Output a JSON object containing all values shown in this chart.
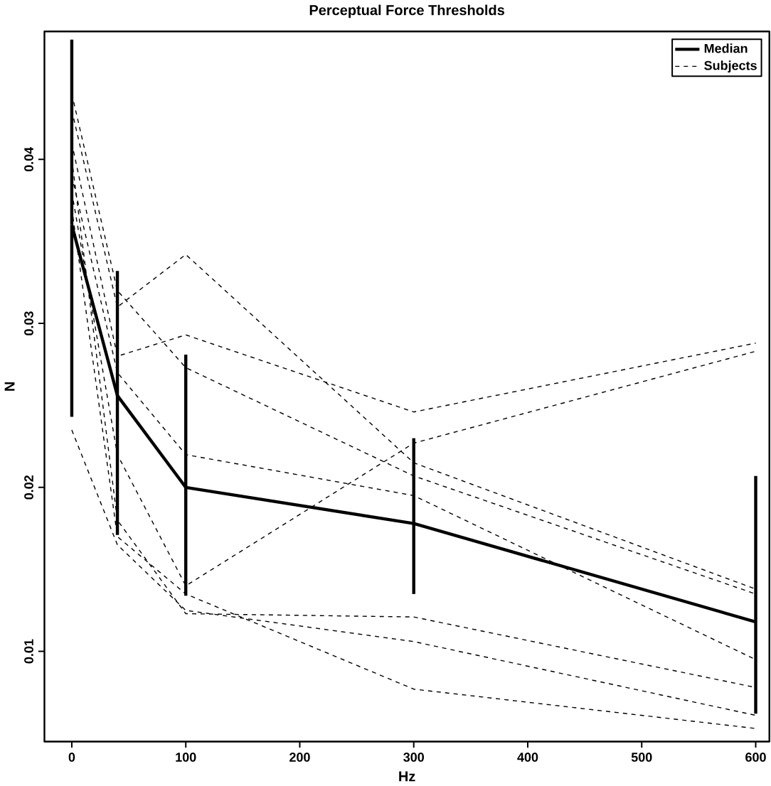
{
  "chart_data": {
    "type": "line",
    "title": "Perceptual Force Thresholds",
    "xlabel": "Hz",
    "ylabel": "N",
    "x": [
      0,
      40,
      100,
      300,
      600
    ],
    "xlim": [
      -24,
      612
    ],
    "ylim": [
      0.0045,
      0.0478
    ],
    "xticks": [
      0,
      100,
      200,
      300,
      400,
      500,
      600
    ],
    "yticks": [
      0.01,
      0.02,
      0.03,
      0.04
    ],
    "grid": false,
    "legend": "top right",
    "marker": "none",
    "series": [
      {
        "name": "Median",
        "color": "#000000",
        "line_style": "solid",
        "values": [
          0.036,
          0.0256,
          0.02,
          0.0178,
          0.0118
        ],
        "errors": [
          [
            0.0243,
            0.0473
          ],
          [
            0.0171,
            0.0332
          ],
          [
            0.0134,
            0.0281
          ],
          [
            0.0135,
            0.023
          ],
          [
            0.0062,
            0.0207
          ]
        ]
      },
      {
        "name": "Subjects",
        "color": "#000000",
        "line_style": "dashed",
        "values": [
          0.043,
          0.031,
          0.0342,
          0.0215,
          0.0138
        ]
      },
      {
        "color": "#000000",
        "line_style": "dashed",
        "values": [
          0.041,
          0.028,
          0.0293,
          0.0246,
          0.0288
        ]
      },
      {
        "color": "#000000",
        "line_style": "dashed",
        "values": [
          0.038,
          0.022,
          0.014,
          0.0227,
          0.0283
        ]
      },
      {
        "color": "#000000",
        "line_style": "dashed",
        "values": [
          0.044,
          0.032,
          0.0273,
          0.0207,
          0.0135
        ]
      },
      {
        "color": "#000000",
        "line_style": "dashed",
        "values": [
          0.039,
          0.027,
          0.022,
          0.0195,
          0.0095
        ]
      },
      {
        "color": "#000000",
        "line_style": "dashed",
        "values": [
          0.04,
          0.018,
          0.0123,
          0.0121,
          0.0078
        ]
      },
      {
        "color": "#000000",
        "line_style": "dashed",
        "values": [
          0.0235,
          0.0165,
          0.0125,
          0.0106,
          0.0061
        ]
      },
      {
        "color": "#000000",
        "line_style": "dashed",
        "values": [
          0.037,
          0.017,
          0.0135,
          0.0077,
          0.0053
        ]
      }
    ]
  }
}
